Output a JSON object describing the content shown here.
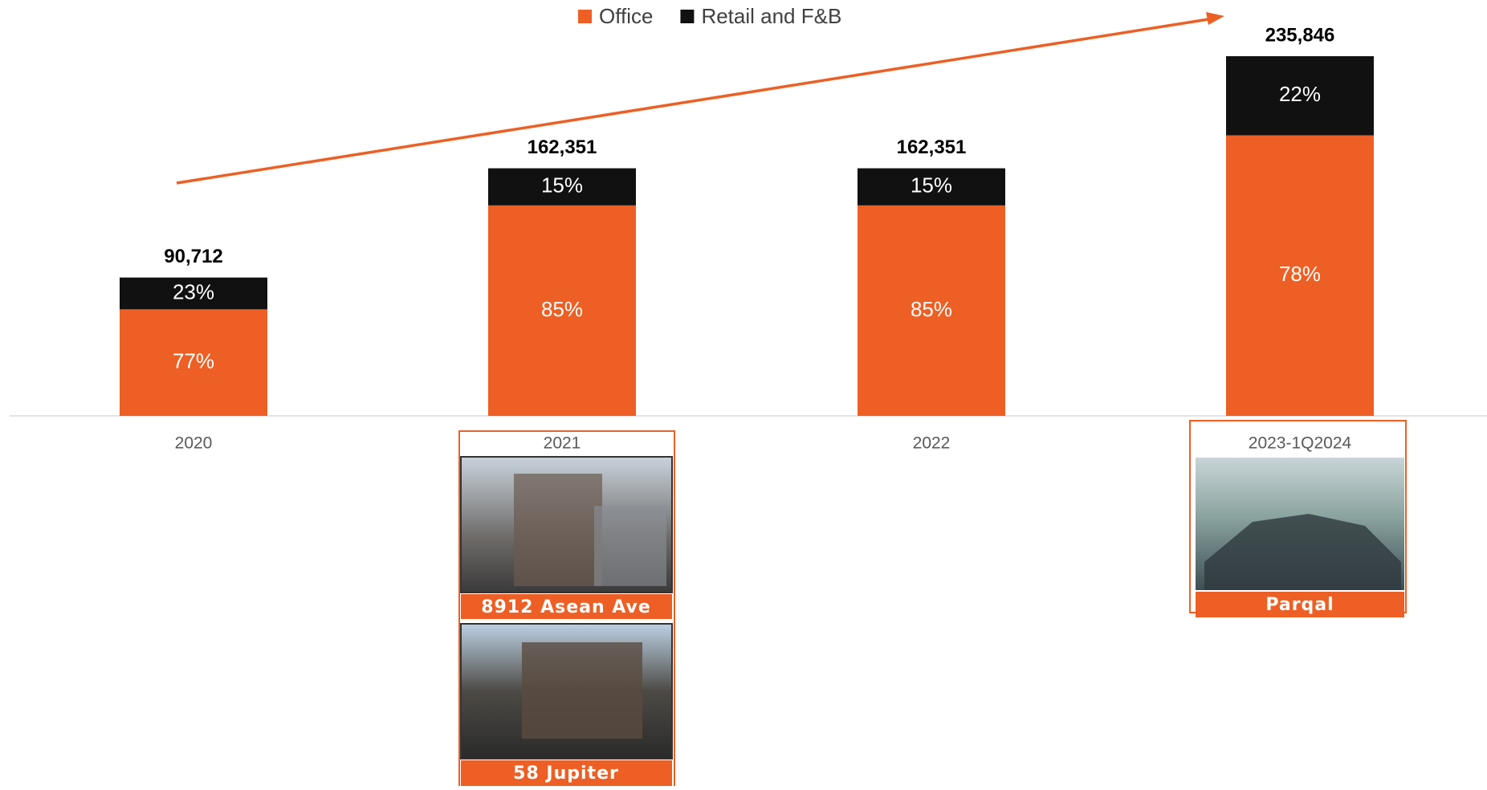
{
  "chart_data": {
    "type": "stacked_bar",
    "categories": [
      "2020",
      "2021",
      "2022",
      "2023-1Q2024"
    ],
    "series": [
      {
        "name": "Office",
        "color": "#ed5f24",
        "values": [
          77,
          85,
          85,
          78
        ],
        "value_labels": [
          "77%",
          "85%",
          "85%",
          "78%"
        ]
      },
      {
        "name": "Retail and F&B",
        "color": "#111111",
        "values": [
          23,
          15,
          15,
          22
        ],
        "value_labels": [
          "23%",
          "15%",
          "15%",
          "22%"
        ]
      }
    ],
    "totals": {
      "values": [
        90712,
        162351,
        162351,
        235846
      ],
      "value_labels": [
        "90,712",
        "162,351",
        "162,351",
        "235,846"
      ]
    },
    "legend": "top",
    "annotations": [
      "8912 Asean Ave",
      "58 Jupiter",
      "Parqal"
    ]
  }
}
